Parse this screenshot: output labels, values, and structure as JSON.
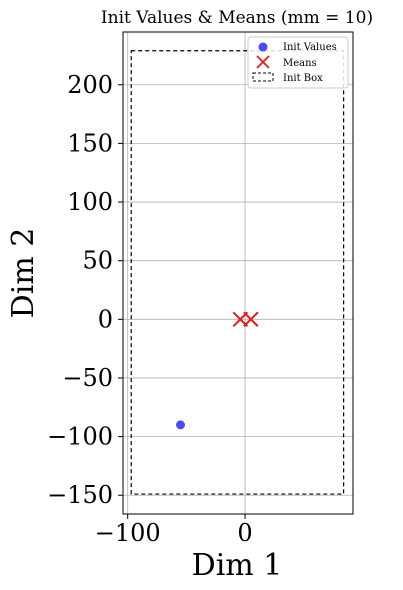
{
  "chart_data": {
    "type": "scatter",
    "title": "Init Values & Means (mm = 10)",
    "xlabel": "Dim 1",
    "ylabel": "Dim 2",
    "xlim": [
      -104,
      92
    ],
    "ylim": [
      -166,
      245
    ],
    "grid": true,
    "legend_position": "top-right",
    "x_ticks": [
      {
        "value": -100,
        "label": "−100"
      },
      {
        "value": 0,
        "label": "0"
      }
    ],
    "y_ticks": [
      {
        "value": -150,
        "label": "−150"
      },
      {
        "value": -100,
        "label": "−100"
      },
      {
        "value": -50,
        "label": "−50"
      },
      {
        "value": 0,
        "label": "0"
      },
      {
        "value": 50,
        "label": "50"
      },
      {
        "value": 100,
        "label": "100"
      },
      {
        "value": 150,
        "label": "150"
      },
      {
        "value": 200,
        "label": "200"
      }
    ],
    "series": [
      {
        "name": "Init Values",
        "kind": "point",
        "color": "#2b2bf0",
        "points": [
          [
            -55,
            -90
          ]
        ]
      },
      {
        "name": "Means",
        "kind": "x-marker",
        "color": "#e41a1c",
        "points": [
          [
            -4,
            0
          ],
          [
            5,
            0
          ]
        ]
      },
      {
        "name": "Init Box",
        "kind": "dashed-rect",
        "color": "#000000",
        "x_range": [
          -97,
          84
        ],
        "y_range": [
          -149,
          229
        ]
      }
    ]
  }
}
